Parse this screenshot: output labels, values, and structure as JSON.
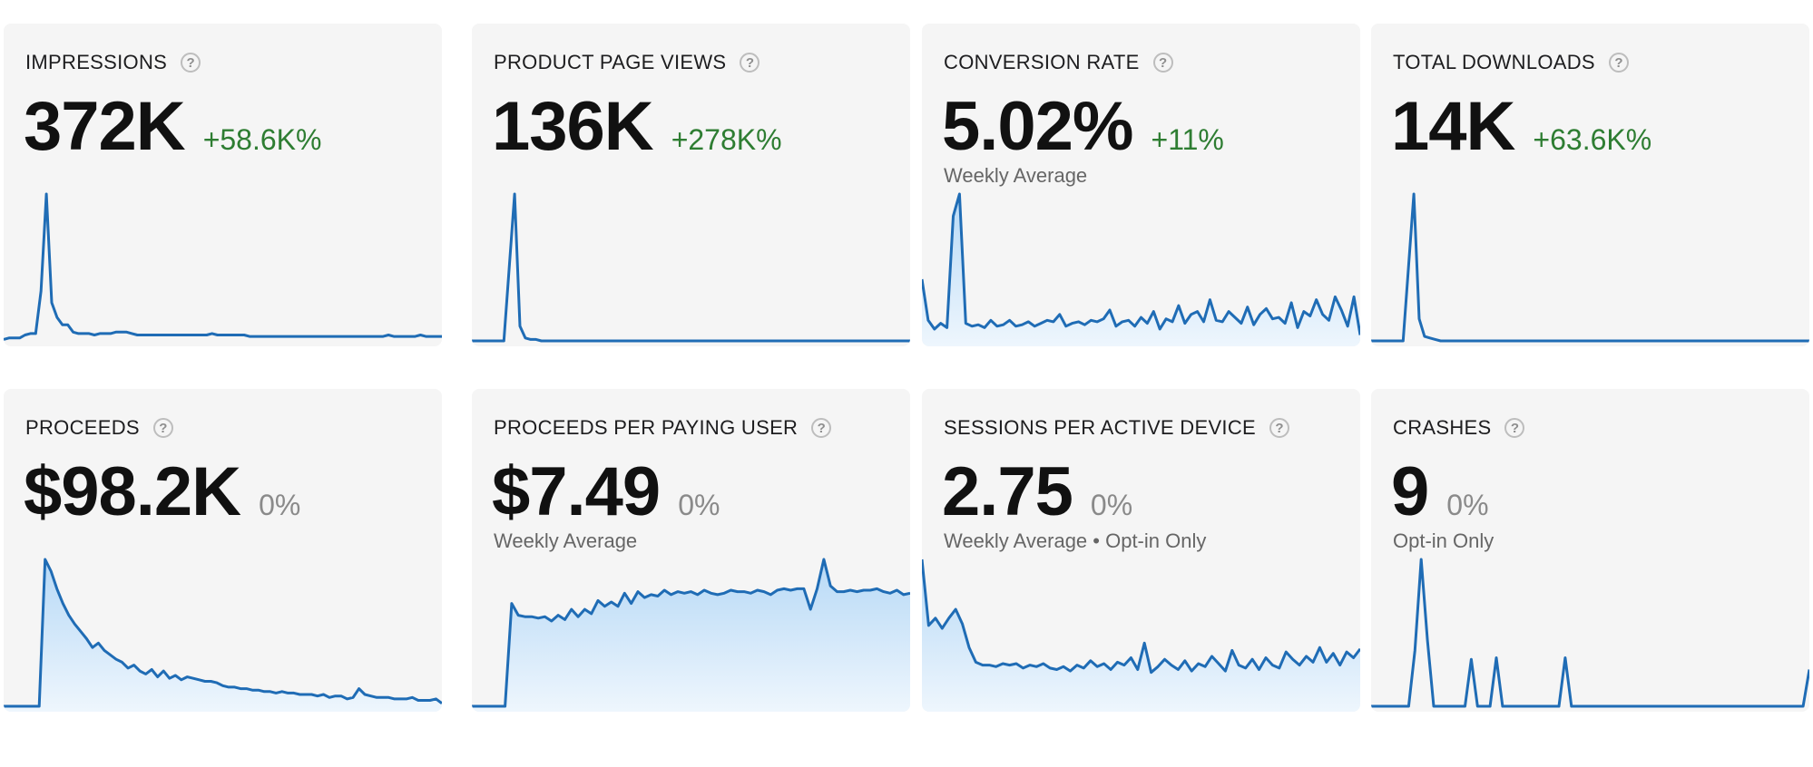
{
  "colors": {
    "line": "#1f6cb5",
    "fill_top": "#b7d9f6",
    "fill_bottom": "#eef6fd",
    "positive": "#2e7d32",
    "neutral": "#8a8a8a"
  },
  "help_symbol": "?",
  "cards": [
    {
      "id": "impressions",
      "title": "IMPRESSIONS",
      "value": "372K",
      "change": "+58.6K%",
      "change_type": "positive",
      "sublabel": "",
      "fill": false,
      "values": [
        1,
        2,
        2,
        2,
        4,
        5,
        5,
        34,
        100,
        26,
        16,
        11,
        11,
        6,
        5,
        5,
        5,
        4,
        5,
        5,
        5,
        6,
        6,
        6,
        5,
        4,
        4,
        4,
        4,
        4,
        4,
        4,
        4,
        4,
        4,
        4,
        4,
        4,
        4,
        5,
        4,
        4,
        4,
        4,
        4,
        4,
        3,
        3,
        3,
        3,
        3,
        3,
        3,
        3,
        3,
        3,
        3,
        3,
        3,
        3,
        3,
        3,
        3,
        3,
        3,
        3,
        3,
        3,
        3,
        3,
        3,
        3,
        4,
        3,
        3,
        3,
        3,
        3,
        4,
        3,
        3,
        3,
        3
      ]
    },
    {
      "id": "product-page-views",
      "title": "PRODUCT PAGE VIEWS",
      "value": "136K",
      "change": "+278K%",
      "change_type": "positive",
      "sublabel": "",
      "fill": false,
      "values": [
        0,
        0,
        0,
        0,
        0,
        0,
        0,
        50,
        100,
        10,
        2,
        1,
        1,
        0,
        0,
        0,
        0,
        0,
        0,
        0,
        0,
        0,
        0,
        0,
        0,
        0,
        0,
        0,
        0,
        0,
        0,
        0,
        0,
        0,
        0,
        0,
        0,
        0,
        0,
        0,
        0,
        0,
        0,
        0,
        0,
        0,
        0,
        0,
        0,
        0,
        0,
        0,
        0,
        0,
        0,
        0,
        0,
        0,
        0,
        0,
        0,
        0,
        0,
        0,
        0,
        0,
        0,
        0,
        0,
        0,
        0,
        0,
        0,
        0,
        0,
        0,
        0,
        0,
        0,
        0,
        0,
        0,
        0
      ]
    },
    {
      "id": "conversion-rate",
      "title": "CONVERSION RATE",
      "value": "5.02%",
      "change": "+11%",
      "change_type": "positive",
      "sublabel": "Weekly Average",
      "fill": true,
      "values": [
        42,
        14,
        8,
        12,
        9,
        85,
        100,
        12,
        10,
        11,
        9,
        14,
        10,
        11,
        14,
        10,
        11,
        13,
        10,
        12,
        14,
        13,
        18,
        10,
        12,
        13,
        11,
        14,
        13,
        15,
        21,
        10,
        13,
        14,
        10,
        16,
        12,
        20,
        8,
        15,
        13,
        24,
        12,
        18,
        20,
        13,
        28,
        14,
        13,
        20,
        16,
        12,
        23,
        11,
        18,
        22,
        15,
        16,
        12,
        26,
        9,
        20,
        17,
        28,
        18,
        14,
        30,
        21,
        10,
        30,
        4
      ]
    },
    {
      "id": "total-downloads",
      "title": "TOTAL DOWNLOADS",
      "value": "14K",
      "change": "+63.6K%",
      "change_type": "positive",
      "sublabel": "",
      "fill": false,
      "values": [
        0,
        0,
        0,
        0,
        0,
        0,
        0,
        50,
        100,
        15,
        3,
        2,
        1,
        0,
        0,
        0,
        0,
        0,
        0,
        0,
        0,
        0,
        0,
        0,
        0,
        0,
        0,
        0,
        0,
        0,
        0,
        0,
        0,
        0,
        0,
        0,
        0,
        0,
        0,
        0,
        0,
        0,
        0,
        0,
        0,
        0,
        0,
        0,
        0,
        0,
        0,
        0,
        0,
        0,
        0,
        0,
        0,
        0,
        0,
        0,
        0,
        0,
        0,
        0,
        0,
        0,
        0,
        0,
        0,
        0,
        0,
        0,
        0,
        0,
        0,
        0,
        0,
        0,
        0,
        0,
        0,
        0,
        0
      ]
    },
    {
      "id": "proceeds",
      "title": "PROCEEDS",
      "value": "$98.2K",
      "change": "0%",
      "change_type": "neutral",
      "sublabel": "",
      "fill": true,
      "values": [
        0,
        0,
        0,
        0,
        0,
        0,
        0,
        100,
        92,
        80,
        70,
        62,
        56,
        51,
        46,
        40,
        43,
        38,
        35,
        32,
        30,
        26,
        28,
        24,
        22,
        25,
        20,
        24,
        19,
        21,
        18,
        20,
        19,
        18,
        17,
        17,
        16,
        14,
        13,
        13,
        12,
        12,
        11,
        11,
        10,
        10,
        9,
        10,
        9,
        9,
        8,
        8,
        8,
        7,
        8,
        6,
        7,
        7,
        5,
        6,
        12,
        8,
        7,
        6,
        6,
        6,
        5,
        5,
        5,
        6,
        4,
        4,
        4,
        5,
        2
      ]
    },
    {
      "id": "proceeds-per-paying-user",
      "title": "PROCEEDS PER PAYING USER",
      "value": "$7.49",
      "change": "0%",
      "change_type": "neutral",
      "sublabel": "Weekly Average",
      "fill": true,
      "values": [
        0,
        0,
        0,
        0,
        0,
        0,
        70,
        62,
        61,
        61,
        60,
        61,
        58,
        62,
        59,
        66,
        61,
        66,
        63,
        72,
        68,
        71,
        68,
        77,
        70,
        78,
        74,
        76,
        75,
        79,
        76,
        78,
        77,
        78,
        76,
        79,
        77,
        76,
        77,
        79,
        78,
        78,
        77,
        79,
        78,
        76,
        79,
        80,
        79,
        80,
        80,
        66,
        80,
        100,
        82,
        78,
        78,
        79,
        78,
        79,
        79,
        80,
        78,
        77,
        79,
        76,
        77
      ]
    },
    {
      "id": "sessions-per-active-device",
      "title": "SESSIONS PER ACTIVE DEVICE",
      "value": "2.75",
      "change": "0%",
      "change_type": "neutral",
      "sublabel": "Weekly Average • Opt-in Only",
      "fill": true,
      "values": [
        100,
        55,
        60,
        53,
        60,
        66,
        56,
        40,
        30,
        28,
        28,
        27,
        29,
        28,
        29,
        26,
        28,
        27,
        29,
        26,
        25,
        27,
        24,
        28,
        26,
        31,
        27,
        29,
        25,
        30,
        28,
        33,
        25,
        43,
        23,
        27,
        32,
        28,
        25,
        31,
        24,
        29,
        27,
        34,
        29,
        24,
        38,
        28,
        26,
        32,
        25,
        33,
        28,
        26,
        37,
        32,
        28,
        34,
        30,
        40,
        30,
        36,
        28,
        37,
        33,
        39
      ]
    },
    {
      "id": "crashes",
      "title": "CRASHES",
      "value": "9",
      "change": "0%",
      "change_type": "neutral",
      "sublabel": "Opt-in Only",
      "fill": false,
      "values": [
        0,
        0,
        0,
        0,
        0,
        0,
        0,
        38,
        100,
        45,
        0,
        0,
        0,
        0,
        0,
        0,
        32,
        0,
        0,
        0,
        33,
        0,
        0,
        0,
        0,
        0,
        0,
        0,
        0,
        0,
        0,
        33,
        0,
        0,
        0,
        0,
        0,
        0,
        0,
        0,
        0,
        0,
        0,
        0,
        0,
        0,
        0,
        0,
        0,
        0,
        0,
        0,
        0,
        0,
        0,
        0,
        0,
        0,
        0,
        0,
        0,
        0,
        0,
        0,
        0,
        0,
        0,
        0,
        0,
        0,
        25
      ]
    }
  ]
}
